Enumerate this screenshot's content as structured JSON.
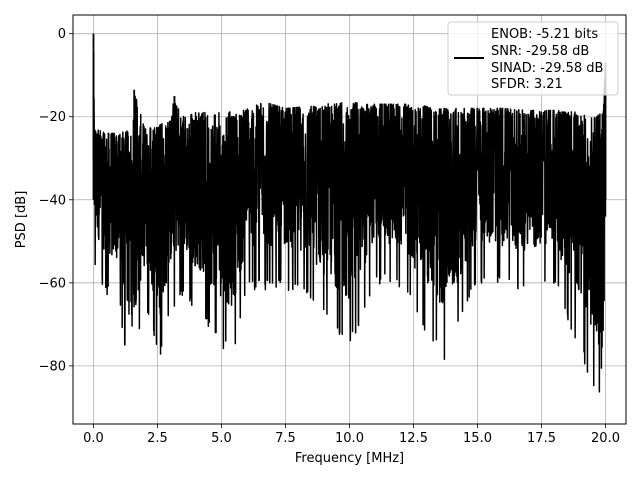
{
  "chart_data": {
    "type": "line",
    "title": "",
    "xlabel": "Frequency [MHz]",
    "ylabel": "PSD [dB]",
    "xlim": [
      -0.8,
      20.8
    ],
    "ylim": [
      -94,
      4.5
    ],
    "xticks": [
      0.0,
      2.5,
      5.0,
      7.5,
      10.0,
      12.5,
      15.0,
      17.5,
      20.0
    ],
    "xtick_labels": [
      "0.0",
      "2.5",
      "5.0",
      "7.5",
      "10.0",
      "12.5",
      "15.0",
      "17.5",
      "20.0"
    ],
    "yticks": [
      0,
      -20,
      -40,
      -60,
      -80
    ],
    "ytick_labels": [
      "0",
      "−20",
      "−40",
      "−60",
      "−80"
    ],
    "grid": true,
    "legend_position": "top-right",
    "series": [
      {
        "color": "#000000",
        "description_points": {
          "upper_envelope": [
            [
              0.0,
              0
            ],
            [
              0.03,
              -20
            ],
            [
              0.1,
              -23
            ],
            [
              0.5,
              -24
            ],
            [
              1.0,
              -24
            ],
            [
              1.5,
              -23
            ],
            [
              1.59,
              -13.5
            ],
            [
              2.0,
              -23
            ],
            [
              2.5,
              -22
            ],
            [
              3.0,
              -21
            ],
            [
              3.16,
              -15
            ],
            [
              3.5,
              -20
            ],
            [
              4.0,
              -19
            ],
            [
              5.0,
              -19
            ],
            [
              6.0,
              -18
            ],
            [
              6.7,
              -16.5
            ],
            [
              7.5,
              -18
            ],
            [
              8.5,
              -17.5
            ],
            [
              9.0,
              -17
            ],
            [
              10.0,
              -16.5
            ],
            [
              11.0,
              -17
            ],
            [
              12.0,
              -17
            ],
            [
              12.5,
              -17
            ],
            [
              13.0,
              -17.5
            ],
            [
              14.0,
              -18
            ],
            [
              15.0,
              -18
            ],
            [
              16.0,
              -18
            ],
            [
              17.0,
              -18.5
            ],
            [
              18.0,
              -18.5
            ],
            [
              19.0,
              -19
            ],
            [
              19.9,
              -19
            ],
            [
              20.0,
              -7
            ]
          ],
          "lower_envelope": [
            [
              0.0,
              -55
            ],
            [
              0.1,
              -58
            ],
            [
              0.5,
              -63
            ],
            [
              1.0,
              -66
            ],
            [
              1.3,
              -79
            ],
            [
              1.5,
              -83
            ],
            [
              2.0,
              -66
            ],
            [
              2.6,
              -79.5
            ],
            [
              3.0,
              -67
            ],
            [
              3.5,
              -63
            ],
            [
              5.4,
              -78.5
            ],
            [
              6.0,
              -62
            ],
            [
              8.0,
              -62
            ],
            [
              10.0,
              -76.5
            ],
            [
              11.0,
              -60
            ],
            [
              12.0,
              -62
            ],
            [
              13.7,
              -79
            ],
            [
              15.0,
              -60
            ],
            [
              17.0,
              -63
            ],
            [
              18.0,
              -61
            ],
            [
              19.8,
              -89.5
            ],
            [
              20.0,
              -56
            ]
          ]
        },
        "notable_peaks": [
          {
            "x": 0.0,
            "y": 0
          },
          {
            "x": 1.59,
            "y": -13.5
          },
          {
            "x": 3.16,
            "y": -15
          },
          {
            "x": 20.0,
            "y": -7
          }
        ]
      }
    ],
    "legend": {
      "entries": [
        "ENOB: -5.21 bits",
        "SNR: -29.58 dB",
        "SINAD: -29.58 dB",
        "SFDR: 3.21"
      ]
    }
  }
}
